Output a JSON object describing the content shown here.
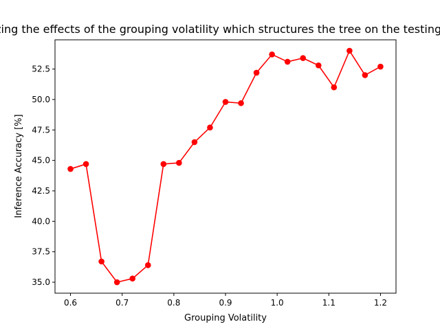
{
  "chart_data": {
    "type": "line",
    "title": "Analyzing the effects of the grouping volatility which structures the tree on the testing dataset",
    "xlabel": "Grouping Volatility",
    "ylabel": "Inference Accuracy [%]",
    "xlim": [
      0.57,
      1.23
    ],
    "ylim": [
      34.1,
      54.9
    ],
    "xticks": [
      "0.6",
      "0.7",
      "0.8",
      "0.9",
      "1.0",
      "1.1",
      "1.2"
    ],
    "yticks": [
      "35.0",
      "37.5",
      "40.0",
      "42.5",
      "45.0",
      "47.5",
      "50.0",
      "52.5"
    ],
    "grid": false,
    "series": [
      {
        "color": "#ff0000",
        "marker": "circle",
        "x": [
          0.6,
          0.63,
          0.66,
          0.69,
          0.72,
          0.75,
          0.78,
          0.81,
          0.84,
          0.87,
          0.9,
          0.93,
          0.96,
          0.99,
          1.02,
          1.05,
          1.08,
          1.11,
          1.14,
          1.17,
          1.2
        ],
        "y": [
          44.3,
          44.7,
          36.7,
          35.0,
          35.3,
          36.4,
          44.7,
          44.8,
          46.5,
          47.7,
          49.8,
          49.7,
          52.2,
          53.7,
          53.1,
          53.4,
          52.8,
          51.0,
          54.0,
          52.0,
          52.7
        ]
      }
    ]
  }
}
